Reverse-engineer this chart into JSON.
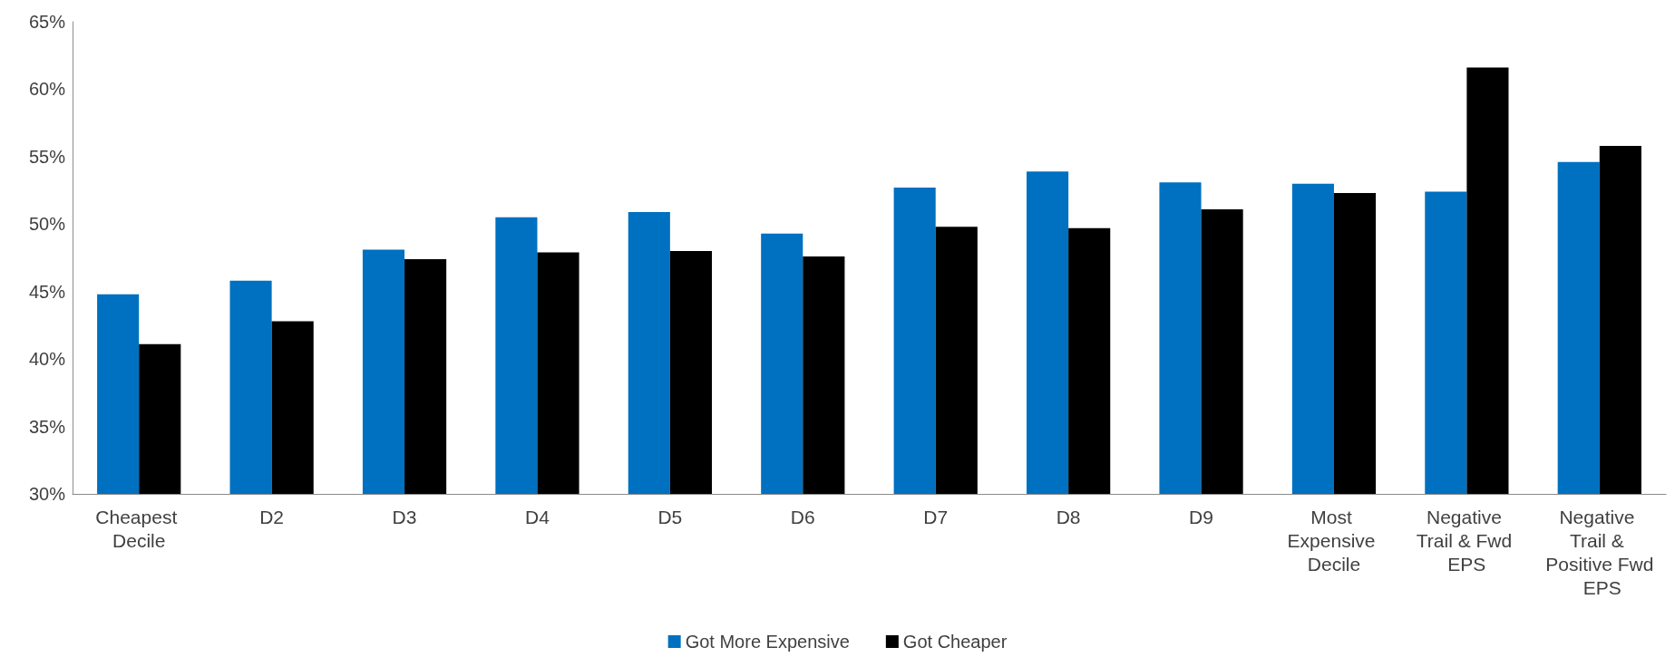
{
  "chart_data": {
    "type": "bar",
    "categories": [
      "Cheapest Decile",
      "D2",
      "D3",
      "D4",
      "D5",
      "D6",
      "D7",
      "D8",
      "D9",
      "Most Expensive Decile",
      "Negative Trail & Fwd EPS",
      "Negative Trail & Positive Fwd EPS"
    ],
    "series": [
      {
        "name": "Got More Expensive",
        "color": "#0070c0",
        "values": [
          44.8,
          45.8,
          48.1,
          50.5,
          50.9,
          49.3,
          52.7,
          53.9,
          53.1,
          53.0,
          52.4,
          54.6
        ]
      },
      {
        "name": "Got Cheaper",
        "color": "#000000",
        "values": [
          41.1,
          42.8,
          47.4,
          47.9,
          48.0,
          47.6,
          49.8,
          49.7,
          51.1,
          52.3,
          61.6,
          55.8
        ]
      }
    ],
    "ylim": [
      30,
      65
    ],
    "yticks": [
      {
        "value": 30,
        "label": "30%"
      },
      {
        "value": 35,
        "label": "35%"
      },
      {
        "value": 40,
        "label": "40%"
      },
      {
        "value": 45,
        "label": "45%"
      },
      {
        "value": 50,
        "label": "50%"
      },
      {
        "value": 55,
        "label": "55%"
      },
      {
        "value": 60,
        "label": "60%"
      },
      {
        "value": 65,
        "label": "65%"
      }
    ],
    "grid": false,
    "legend": "bottom"
  }
}
